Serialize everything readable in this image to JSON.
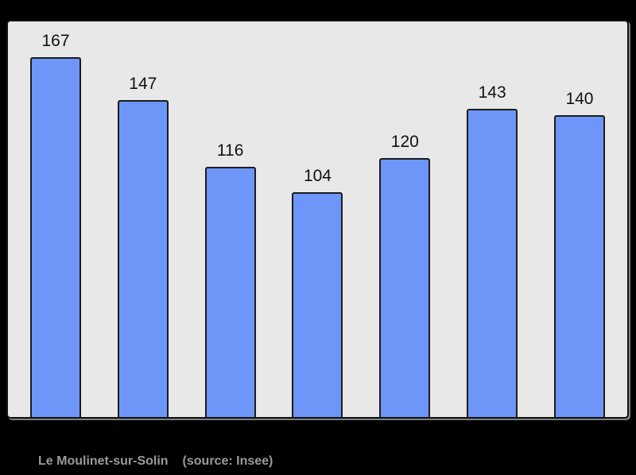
{
  "page": {
    "background_color": "#000000"
  },
  "caption": {
    "title": "Le Moulinet-sur-Solin",
    "source": "(source: Insee)",
    "color": "#9a9a9a"
  },
  "chart_data": {
    "type": "bar",
    "values": [
      167,
      147,
      116,
      104,
      120,
      143,
      140
    ],
    "value_labels": [
      "167",
      "147",
      "116",
      "104",
      "120",
      "143",
      "140"
    ],
    "title": "",
    "xlabel": "",
    "ylabel": "",
    "ylim": [
      0,
      183
    ],
    "grid": false,
    "legend": false,
    "value_labels_shown": true,
    "bar_color": "#6d96f8",
    "bar_border_color": "#1c1c1c",
    "plot_background": "#e8e8e8",
    "label_color": "#111111"
  }
}
